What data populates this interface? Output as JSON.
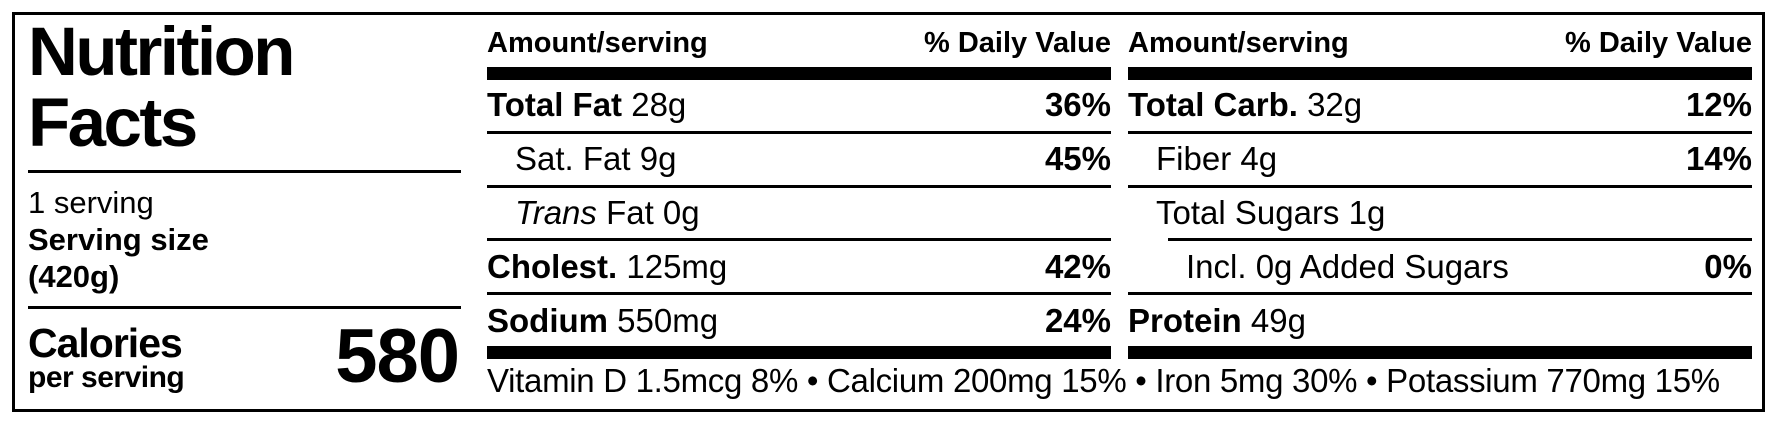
{
  "left": {
    "title_line1": "Nutrition",
    "title_line2": "Facts",
    "servings": "1 serving",
    "serving_size_label": "Serving size",
    "serving_size_value": "(420g)",
    "calories_label": "Calories",
    "calories_sublabel": "per serving",
    "calories_value": "580"
  },
  "col_header": {
    "amount": "Amount/serving",
    "daily_value": "% Daily Value"
  },
  "columns": [
    {
      "rows": [
        {
          "name": "Total Fat",
          "amount": "28g",
          "dv": "36%"
        },
        {
          "name": "Sat. Fat",
          "amount": "9g",
          "dv": "45%"
        },
        {
          "name": "Trans",
          "amount": "Fat 0g",
          "dv": ""
        },
        {
          "name": "Cholest.",
          "amount": "125mg",
          "dv": "42%"
        },
        {
          "name": "Sodium",
          "amount": "550mg",
          "dv": "24%"
        }
      ]
    },
    {
      "rows": [
        {
          "name": "Total Carb.",
          "amount": "32g",
          "dv": "12%"
        },
        {
          "name": "Fiber",
          "amount": "4g",
          "dv": "14%"
        },
        {
          "name": "Total Sugars",
          "amount": "1g",
          "dv": ""
        },
        {
          "name": "Incl. 0g Added Sugars",
          "amount": "",
          "dv": "0%"
        },
        {
          "name": "Protein",
          "amount": "49g",
          "dv": ""
        }
      ]
    }
  ],
  "footnote": "Vitamin D 1.5mcg 8% • Calcium 200mg 15% • Iron 5mg 30% • Potassium 770mg 15%"
}
